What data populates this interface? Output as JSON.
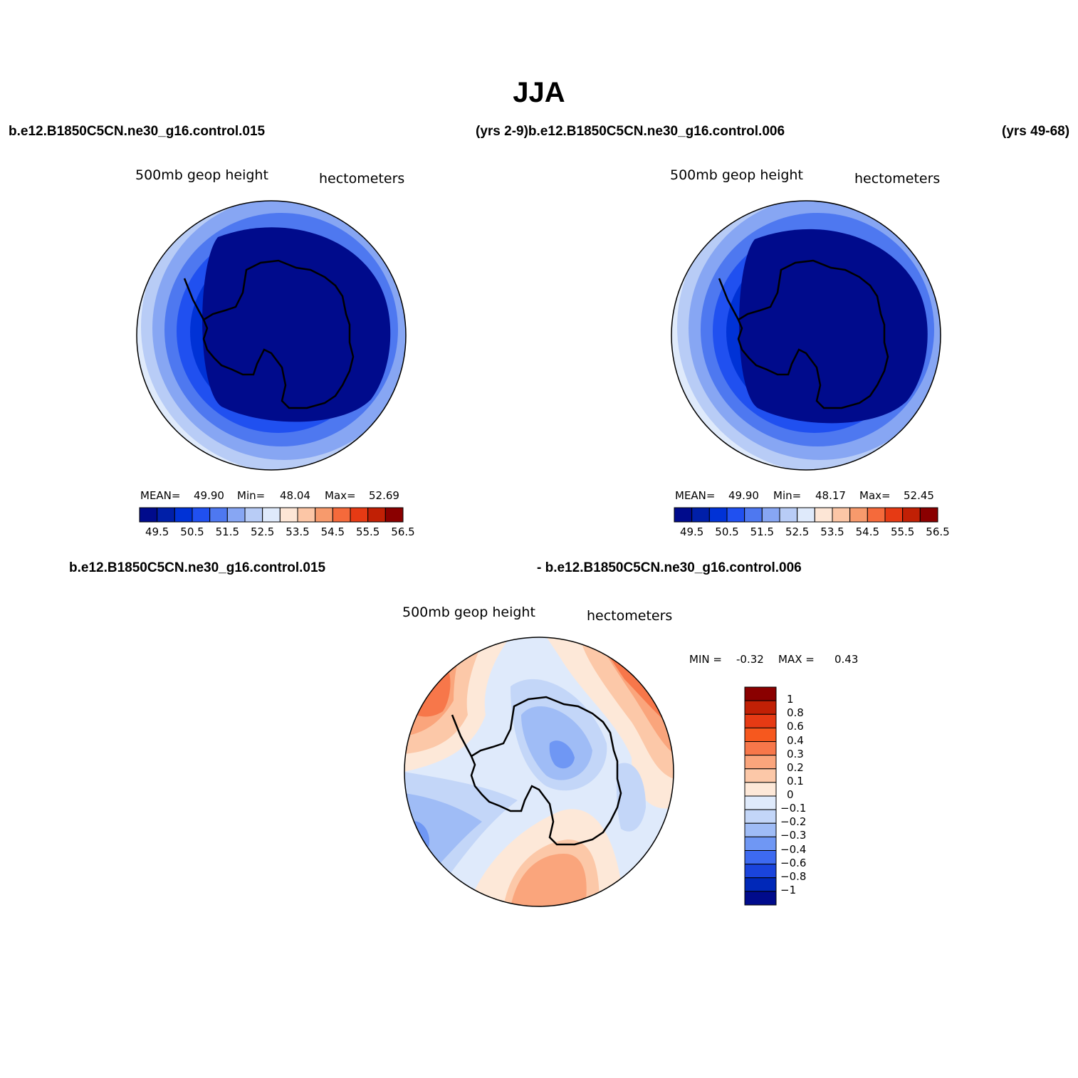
{
  "title": "JJA",
  "header": {
    "case1": "b.e12.B1850C5CN.ne30_g16.control.015",
    "case1_years_and_case2": "(yrs 2-9)b.e12.B1850C5CN.ne30_g16.control.006",
    "case2_years": "(yrs 49-68)"
  },
  "panels": [
    {
      "variable": "500mb  geop  height",
      "units": "hectometers",
      "mean_label": "MEAN=",
      "mean": "49.90",
      "min_label": "Min=",
      "min": "48.04",
      "max_label": "Max=",
      "max": "52.69"
    },
    {
      "variable": "500mb  geop  height",
      "units": "hectometers",
      "mean_label": "MEAN=",
      "mean": "49.90",
      "min_label": "Min=",
      "min": "48.17",
      "max_label": "Max=",
      "max": "52.45"
    }
  ],
  "colorbar": {
    "colors": [
      "#000b8c",
      "#001fa8",
      "#0032d6",
      "#2050f0",
      "#4e78f0",
      "#87a6f3",
      "#b8ccf6",
      "#dfeafb",
      "#fde6d6",
      "#fcc6a6",
      "#f79a6c",
      "#f56a3b",
      "#e63a14",
      "#c12005",
      "#8a0000"
    ],
    "labels": [
      "49.5",
      "50.5",
      "51.5",
      "52.5",
      "53.5",
      "54.5",
      "55.5",
      "56.5"
    ]
  },
  "diff": {
    "title_left": "b.e12.B1850C5CN.ne30_g16.control.015",
    "title_right": "- b.e12.B1850C5CN.ne30_g16.control.006",
    "variable": "500mb  geop  height",
    "units": "hectometers",
    "min_label": "MIN =",
    "min": "-0.32",
    "max_label": "MAX =",
    "max": "0.43",
    "levels": [
      "1",
      "0.8",
      "0.6",
      "0.4",
      "0.3",
      "0.2",
      "0.1",
      "0",
      "-0.1",
      "-0.2",
      "-0.3",
      "-0.4",
      "-0.6",
      "-0.8",
      "-1"
    ],
    "colors": [
      "#8a0000",
      "#c12005",
      "#e63a14",
      "#f6581e",
      "#f7774a",
      "#faa57c",
      "#fcc8a8",
      "#fde8d8",
      "#dfeafb",
      "#c3d6f8",
      "#9fbcf6",
      "#6f97f4",
      "#3d6af0",
      "#1a44dc",
      "#0028b8",
      "#000b8c"
    ]
  }
}
